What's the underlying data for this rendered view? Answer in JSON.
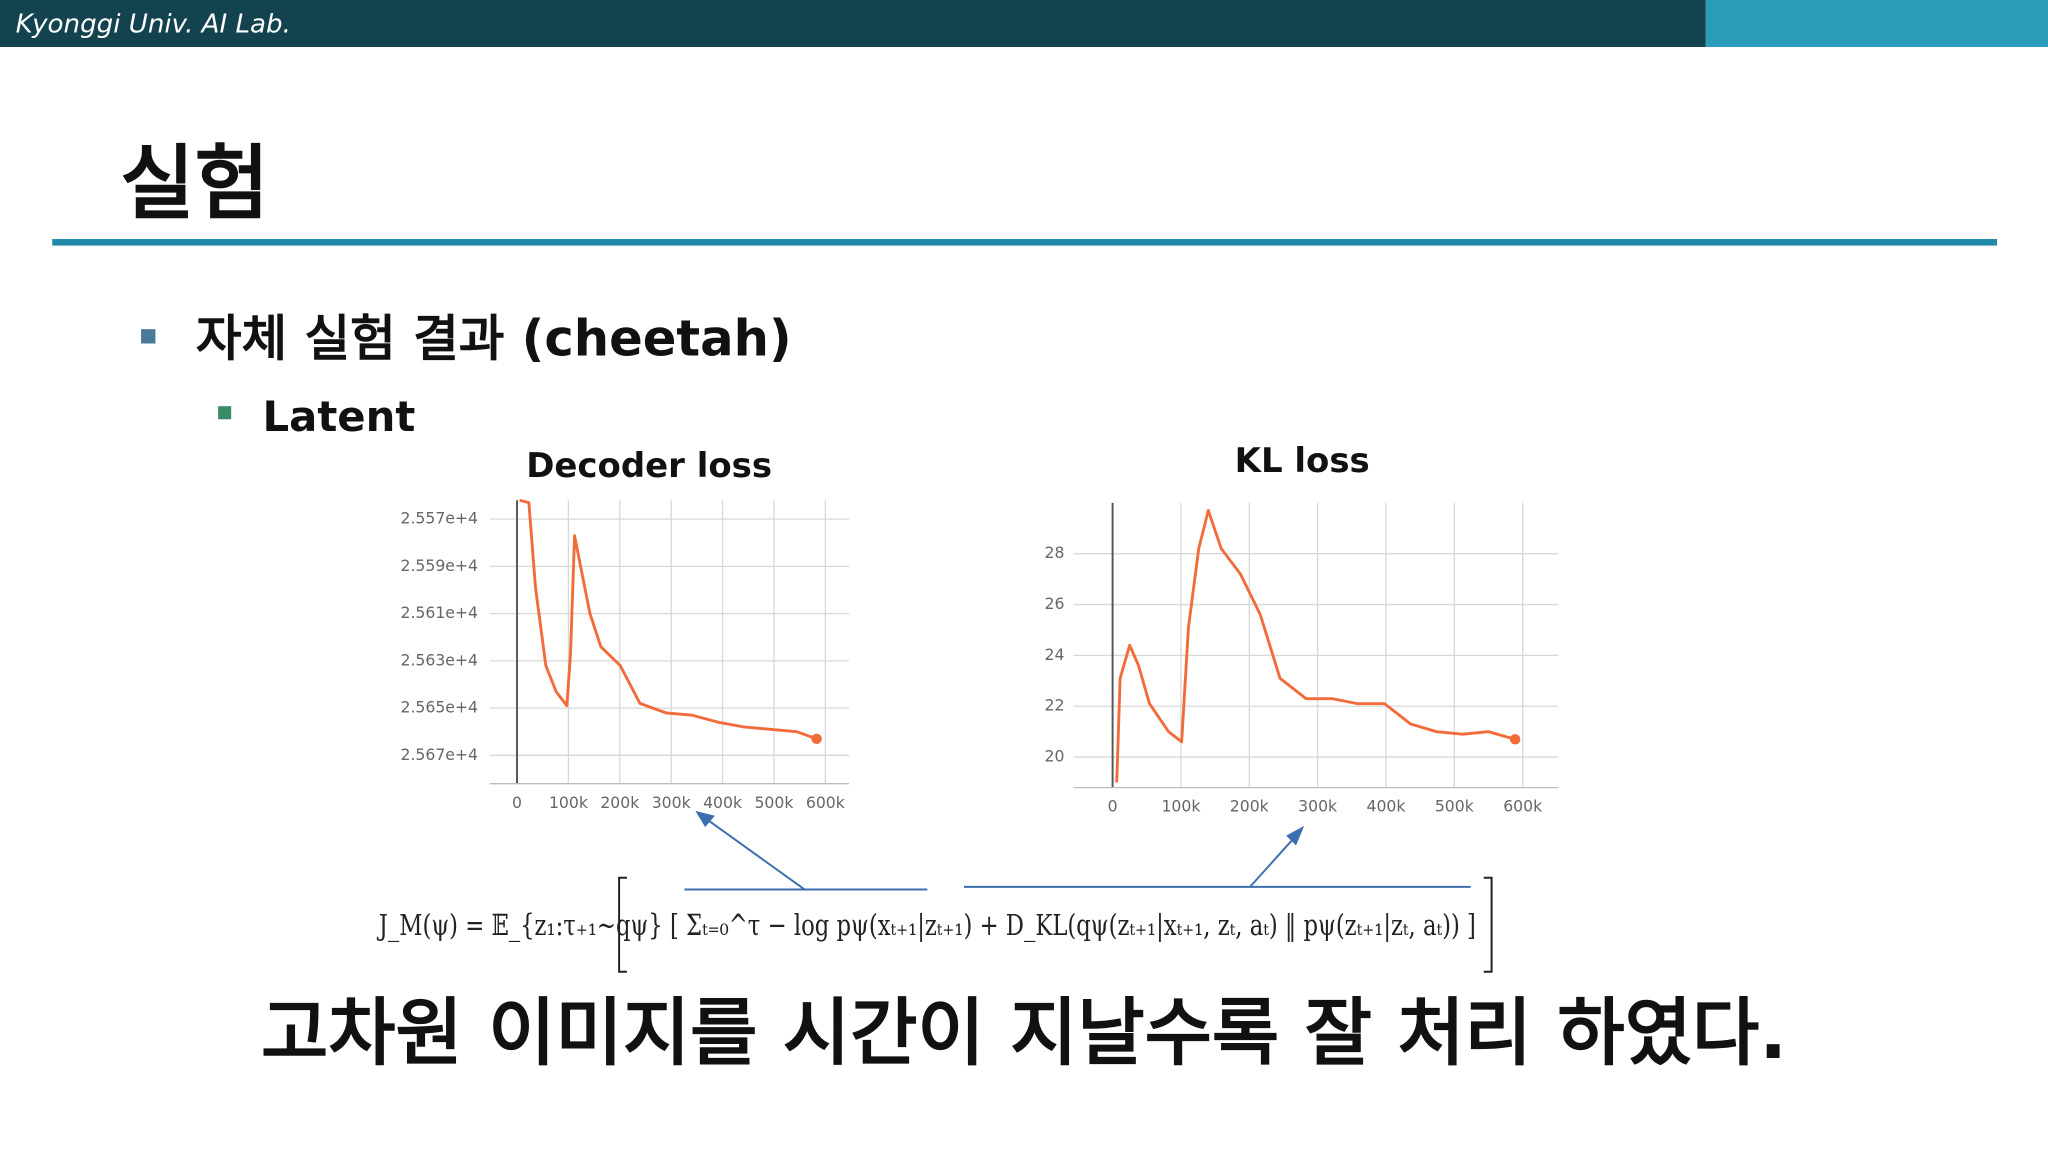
{
  "header": {
    "lab": "Kyonggi Univ. AI Lab."
  },
  "title": "실험",
  "bullets": {
    "level1": "자체 실험 결과 (cheetah)",
    "level2": "Latent"
  },
  "chart_data": [
    {
      "type": "line",
      "title": "Decoder loss",
      "color": "#f26b3a",
      "grid": true,
      "x": [
        5000,
        23000,
        36000,
        56000,
        76000,
        97000,
        104000,
        112000,
        122000,
        142000,
        163000,
        201000,
        239000,
        290000,
        341000,
        392000,
        442000,
        493000,
        544000,
        583000
      ],
      "values": [
        25562,
        25563,
        25599,
        25632,
        25643,
        25649,
        25627,
        25577,
        25588,
        25610,
        25624,
        25632,
        25648,
        25652,
        25653,
        25656,
        25658,
        25659,
        25660,
        25663
      ],
      "xlim": [
        -53000,
        646000
      ],
      "ylim": [
        25682,
        25562
      ],
      "xticks": [
        0,
        {
          "value": 100000,
          "label": "100k"
        },
        {
          "value": 200000,
          "label": "200k"
        },
        {
          "value": 300000,
          "label": "300k"
        },
        {
          "value": 400000,
          "label": "400k"
        },
        {
          "value": 500000,
          "label": "500k"
        },
        {
          "value": 600000,
          "label": "600k"
        }
      ],
      "yticks": [
        {
          "value": 25570,
          "label": "2.557e+4"
        },
        {
          "value": 25590,
          "label": "2.559e+4"
        },
        {
          "value": 25610,
          "label": "2.561e+4"
        },
        {
          "value": 25630,
          "label": "2.563e+4"
        },
        {
          "value": 25650,
          "label": "2.565e+4"
        },
        {
          "value": 25670,
          "label": "2.567e+4"
        }
      ]
    },
    {
      "type": "line",
      "title": "KL loss",
      "color": "#f26b3a",
      "grid": true,
      "x": [
        6000,
        11000,
        25000,
        38000,
        54000,
        82000,
        101000,
        111000,
        126000,
        140000,
        159000,
        187000,
        216000,
        245000,
        283000,
        321000,
        359000,
        398000,
        436000,
        474000,
        512000,
        550000,
        589000
      ],
      "values": [
        19.0,
        23.1,
        24.4,
        23.6,
        22.1,
        21.0,
        20.6,
        25.1,
        28.2,
        29.7,
        28.2,
        27.2,
        25.6,
        23.1,
        22.3,
        22.3,
        22.1,
        22.1,
        21.3,
        21.0,
        20.9,
        21.0,
        20.7
      ],
      "xlim": [
        -57000,
        652000
      ],
      "ylim": [
        18.8,
        30
      ],
      "xticks": [
        0,
        {
          "value": 100000,
          "label": "100k"
        },
        {
          "value": 200000,
          "label": "200k"
        },
        {
          "value": 300000,
          "label": "300k"
        },
        {
          "value": 400000,
          "label": "400k"
        },
        {
          "value": 500000,
          "label": "500k"
        },
        {
          "value": 600000,
          "label": "600k"
        }
      ],
      "yticks": [
        20,
        22,
        24,
        26,
        28
      ]
    }
  ],
  "equation": "J_M(ψ) = 𝔼_{z₁:τ₊₁∼qψ} [ Σₜ₌₀^τ − log pψ(xₜ₊₁|zₜ₊₁) + D_KL(qψ(zₜ₊₁|xₜ₊₁, zₜ, aₜ) ‖ pψ(zₜ₊₁|zₜ, aₜ)) ]",
  "conclusion": "고차원 이미지를 시간이 지날수록 잘 처리 하였다."
}
